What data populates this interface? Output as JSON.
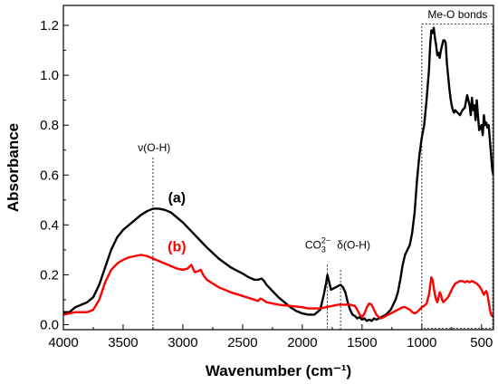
{
  "chart_data": {
    "type": "line",
    "xlabel": "Wavenumber (cm⁻¹)",
    "ylabel": "Absorbance",
    "xlim": [
      4000,
      400
    ],
    "ylim": [
      -0.02,
      1.28
    ],
    "x_reversed": true,
    "xticks": [
      4000,
      3500,
      3000,
      2500,
      2000,
      1500,
      1000,
      500
    ],
    "yticks": [
      0.0,
      0.2,
      0.4,
      0.6,
      0.8,
      1.0,
      1.2
    ],
    "xtick_labels": [
      "4000",
      "3500",
      "3000",
      "2500",
      "2000",
      "1500",
      "1000",
      "500"
    ],
    "ytick_labels": [
      "0.0",
      "0.2",
      "0.4",
      "0.6",
      "0.8",
      "1.0",
      "1.2"
    ],
    "grid": false,
    "series": [
      {
        "name": "(a)",
        "color": "#000000",
        "points": [
          [
            4000,
            0.05
          ],
          [
            3950,
            0.05
          ],
          [
            3900,
            0.07
          ],
          [
            3850,
            0.08
          ],
          [
            3800,
            0.09
          ],
          [
            3750,
            0.11
          ],
          [
            3700,
            0.16
          ],
          [
            3650,
            0.23
          ],
          [
            3600,
            0.3
          ],
          [
            3550,
            0.35
          ],
          [
            3500,
            0.38
          ],
          [
            3450,
            0.4
          ],
          [
            3400,
            0.42
          ],
          [
            3350,
            0.44
          ],
          [
            3300,
            0.455
          ],
          [
            3250,
            0.465
          ],
          [
            3200,
            0.465
          ],
          [
            3150,
            0.46
          ],
          [
            3100,
            0.45
          ],
          [
            3050,
            0.43
          ],
          [
            3000,
            0.41
          ],
          [
            2950,
            0.385
          ],
          [
            2900,
            0.36
          ],
          [
            2850,
            0.335
          ],
          [
            2800,
            0.31
          ],
          [
            2700,
            0.265
          ],
          [
            2600,
            0.23
          ],
          [
            2500,
            0.205
          ],
          [
            2450,
            0.19
          ],
          [
            2400,
            0.18
          ],
          [
            2370,
            0.18
          ],
          [
            2340,
            0.185
          ],
          [
            2320,
            0.175
          ],
          [
            2300,
            0.16
          ],
          [
            2250,
            0.135
          ],
          [
            2200,
            0.11
          ],
          [
            2150,
            0.09
          ],
          [
            2100,
            0.07
          ],
          [
            2050,
            0.055
          ],
          [
            2000,
            0.045
          ],
          [
            1950,
            0.04
          ],
          [
            1900,
            0.04
          ],
          [
            1850,
            0.06
          ],
          [
            1820,
            0.12
          ],
          [
            1800,
            0.17
          ],
          [
            1790,
            0.2
          ],
          [
            1775,
            0.17
          ],
          [
            1760,
            0.14
          ],
          [
            1740,
            0.145
          ],
          [
            1720,
            0.15
          ],
          [
            1700,
            0.155
          ],
          [
            1680,
            0.16
          ],
          [
            1660,
            0.15
          ],
          [
            1640,
            0.13
          ],
          [
            1620,
            0.09
          ],
          [
            1600,
            0.06
          ],
          [
            1580,
            0.04
          ],
          [
            1560,
            0.035
          ],
          [
            1540,
            0.025
          ],
          [
            1520,
            0.03
          ],
          [
            1500,
            0.02
          ],
          [
            1480,
            0.025
          ],
          [
            1460,
            0.015
          ],
          [
            1440,
            0.02
          ],
          [
            1420,
            0.015
          ],
          [
            1400,
            0.025
          ],
          [
            1380,
            0.02
          ],
          [
            1360,
            0.025
          ],
          [
            1340,
            0.03
          ],
          [
            1320,
            0.035
          ],
          [
            1300,
            0.04
          ],
          [
            1280,
            0.05
          ],
          [
            1260,
            0.06
          ],
          [
            1240,
            0.08
          ],
          [
            1220,
            0.1
          ],
          [
            1200,
            0.13
          ],
          [
            1180,
            0.18
          ],
          [
            1160,
            0.24
          ],
          [
            1140,
            0.28
          ],
          [
            1120,
            0.3
          ],
          [
            1100,
            0.32
          ],
          [
            1080,
            0.37
          ],
          [
            1060,
            0.45
          ],
          [
            1040,
            0.58
          ],
          [
            1020,
            0.68
          ],
          [
            1000,
            0.75
          ],
          [
            980,
            0.8
          ],
          [
            960,
            0.9
          ],
          [
            940,
            1.02
          ],
          [
            930,
            1.12
          ],
          [
            920,
            1.18
          ],
          [
            910,
            1.17
          ],
          [
            900,
            1.19
          ],
          [
            890,
            1.15
          ],
          [
            880,
            1.12
          ],
          [
            870,
            1.08
          ],
          [
            860,
            1.09
          ],
          [
            850,
            1.07
          ],
          [
            840,
            1.1
          ],
          [
            830,
            1.12
          ],
          [
            820,
            1.14
          ],
          [
            810,
            1.14
          ],
          [
            800,
            1.13
          ],
          [
            790,
            1.05
          ],
          [
            780,
            1.0
          ],
          [
            770,
            0.95
          ],
          [
            760,
            0.91
          ],
          [
            750,
            0.88
          ],
          [
            740,
            0.86
          ],
          [
            730,
            0.85
          ],
          [
            720,
            0.86
          ],
          [
            700,
            0.85
          ],
          [
            680,
            0.84
          ],
          [
            660,
            0.86
          ],
          [
            640,
            0.87
          ],
          [
            620,
            0.92
          ],
          [
            600,
            0.88
          ],
          [
            590,
            0.84
          ],
          [
            580,
            0.91
          ],
          [
            570,
            0.86
          ],
          [
            560,
            0.88
          ],
          [
            550,
            0.82
          ],
          [
            540,
            0.9
          ],
          [
            530,
            0.84
          ],
          [
            520,
            0.78
          ],
          [
            510,
            0.79
          ],
          [
            500,
            0.8
          ],
          [
            490,
            0.76
          ],
          [
            480,
            0.84
          ],
          [
            470,
            0.8
          ],
          [
            460,
            0.81
          ],
          [
            450,
            0.79
          ],
          [
            440,
            0.8
          ],
          [
            430,
            0.74
          ],
          [
            420,
            0.68
          ],
          [
            410,
            0.62
          ],
          [
            400,
            0.6
          ]
        ]
      },
      {
        "name": "(b)",
        "color": "#ff0000",
        "points": [
          [
            4000,
            0.04
          ],
          [
            3950,
            0.045
          ],
          [
            3900,
            0.05
          ],
          [
            3850,
            0.05
          ],
          [
            3800,
            0.05
          ],
          [
            3750,
            0.06
          ],
          [
            3700,
            0.1
          ],
          [
            3650,
            0.17
          ],
          [
            3600,
            0.22
          ],
          [
            3550,
            0.245
          ],
          [
            3500,
            0.26
          ],
          [
            3450,
            0.27
          ],
          [
            3400,
            0.275
          ],
          [
            3350,
            0.28
          ],
          [
            3300,
            0.275
          ],
          [
            3250,
            0.265
          ],
          [
            3200,
            0.255
          ],
          [
            3150,
            0.245
          ],
          [
            3100,
            0.235
          ],
          [
            3050,
            0.225
          ],
          [
            3000,
            0.22
          ],
          [
            2960,
            0.225
          ],
          [
            2950,
            0.23
          ],
          [
            2930,
            0.24
          ],
          [
            2920,
            0.23
          ],
          [
            2900,
            0.21
          ],
          [
            2870,
            0.215
          ],
          [
            2850,
            0.22
          ],
          [
            2830,
            0.2
          ],
          [
            2800,
            0.18
          ],
          [
            2700,
            0.15
          ],
          [
            2600,
            0.13
          ],
          [
            2500,
            0.115
          ],
          [
            2400,
            0.1
          ],
          [
            2370,
            0.095
          ],
          [
            2350,
            0.105
          ],
          [
            2330,
            0.1
          ],
          [
            2300,
            0.09
          ],
          [
            2200,
            0.08
          ],
          [
            2100,
            0.075
          ],
          [
            2000,
            0.07
          ],
          [
            1950,
            0.065
          ],
          [
            1900,
            0.065
          ],
          [
            1850,
            0.065
          ],
          [
            1800,
            0.07
          ],
          [
            1750,
            0.075
          ],
          [
            1700,
            0.08
          ],
          [
            1650,
            0.08
          ],
          [
            1600,
            0.08
          ],
          [
            1560,
            0.075
          ],
          [
            1540,
            0.06
          ],
          [
            1520,
            0.04
          ],
          [
            1500,
            0.03
          ],
          [
            1480,
            0.045
          ],
          [
            1460,
            0.07
          ],
          [
            1440,
            0.085
          ],
          [
            1420,
            0.08
          ],
          [
            1400,
            0.06
          ],
          [
            1380,
            0.04
          ],
          [
            1360,
            0.03
          ],
          [
            1340,
            0.025
          ],
          [
            1320,
            0.03
          ],
          [
            1300,
            0.035
          ],
          [
            1280,
            0.04
          ],
          [
            1260,
            0.045
          ],
          [
            1240,
            0.05
          ],
          [
            1220,
            0.055
          ],
          [
            1200,
            0.06
          ],
          [
            1180,
            0.065
          ],
          [
            1160,
            0.07
          ],
          [
            1140,
            0.07
          ],
          [
            1120,
            0.065
          ],
          [
            1100,
            0.06
          ],
          [
            1080,
            0.05
          ],
          [
            1060,
            0.045
          ],
          [
            1040,
            0.05
          ],
          [
            1020,
            0.06
          ],
          [
            1000,
            0.07
          ],
          [
            980,
            0.075
          ],
          [
            960,
            0.085
          ],
          [
            940,
            0.12
          ],
          [
            920,
            0.19
          ],
          [
            910,
            0.18
          ],
          [
            900,
            0.15
          ],
          [
            890,
            0.12
          ],
          [
            880,
            0.1
          ],
          [
            870,
            0.09
          ],
          [
            860,
            0.11
          ],
          [
            850,
            0.13
          ],
          [
            840,
            0.12
          ],
          [
            830,
            0.1
          ],
          [
            820,
            0.09
          ],
          [
            810,
            0.095
          ],
          [
            800,
            0.1
          ],
          [
            780,
            0.11
          ],
          [
            760,
            0.13
          ],
          [
            740,
            0.15
          ],
          [
            720,
            0.165
          ],
          [
            700,
            0.17
          ],
          [
            680,
            0.175
          ],
          [
            660,
            0.175
          ],
          [
            640,
            0.17
          ],
          [
            620,
            0.175
          ],
          [
            600,
            0.17
          ],
          [
            580,
            0.175
          ],
          [
            560,
            0.17
          ],
          [
            540,
            0.165
          ],
          [
            520,
            0.155
          ],
          [
            500,
            0.14
          ],
          [
            480,
            0.12
          ],
          [
            470,
            0.13
          ],
          [
            460,
            0.135
          ],
          [
            450,
            0.12
          ],
          [
            440,
            0.09
          ],
          [
            430,
            0.06
          ],
          [
            420,
            0.04
          ],
          [
            410,
            0.035
          ],
          [
            400,
            0.03
          ]
        ]
      }
    ],
    "series_labels": [
      {
        "text": "(a)",
        "x": 3050,
        "y": 0.49,
        "color": "#000000"
      },
      {
        "text": "(b)",
        "x": 3050,
        "y": 0.295,
        "color": "#ff0000"
      }
    ],
    "annotations": [
      {
        "text": "ν(O-H)",
        "line_x": 3250,
        "line_y_top": 0.67,
        "line_y_bottom": -0.02,
        "text_x": 3240,
        "text_y": 0.695
      },
      {
        "text": "δ(O-H)",
        "line_x": 1680,
        "line_y_top": 0.22,
        "line_y_bottom": -0.02,
        "text_x": 1570,
        "text_y": 0.305
      },
      {
        "text_parts": [
          "CO",
          "3",
          "2−"
        ],
        "line_x": 1790,
        "line_y_top": 0.24,
        "line_y_bottom": -0.02,
        "text_x": 1870,
        "text_y": 0.305
      }
    ],
    "region_box": {
      "label": "Me-O bonds",
      "x_from": 1000,
      "x_to": 400,
      "y_from": -0.015,
      "y_to": 1.205,
      "label_x": 700,
      "label_y": 1.23
    }
  }
}
